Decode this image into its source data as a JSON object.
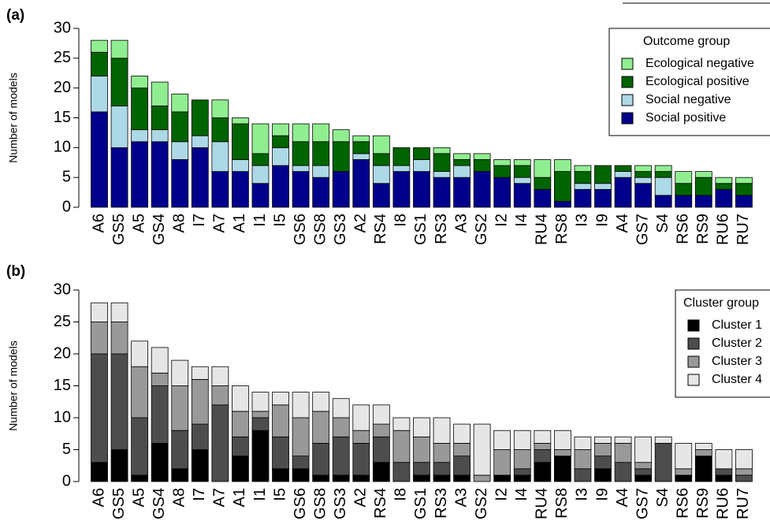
{
  "chart_data": [
    {
      "type": "bar",
      "stacked": true,
      "panel_label": "(a)",
      "ylabel": "Number of models",
      "categories": [
        "A6",
        "GS5",
        "A5",
        "GS4",
        "A8",
        "I7",
        "A7",
        "A1",
        "I1",
        "I5",
        "GS6",
        "GS8",
        "GS3",
        "A2",
        "RS4",
        "I8",
        "GS1",
        "RS3",
        "A3",
        "GS2",
        "I2",
        "I4",
        "RU4",
        "RS8",
        "I3",
        "I9",
        "A4",
        "GS7",
        "S4",
        "RS6",
        "RS9",
        "RU6",
        "RU7"
      ],
      "legend_title": "Outcome group",
      "legend": "right",
      "legend_reversed": true,
      "series": [
        {
          "name": "Social positive",
          "color": "#00008b",
          "values": [
            16,
            10,
            11,
            11,
            8,
            10,
            6,
            6,
            4,
            7,
            6,
            5,
            6,
            8,
            4,
            6,
            6,
            5,
            5,
            6,
            5,
            4,
            3,
            1,
            3,
            3,
            5,
            4,
            2,
            2,
            2,
            3,
            2
          ]
        },
        {
          "name": "Social negative",
          "color": "#add8e6",
          "values": [
            6,
            7,
            2,
            2,
            3,
            2,
            5,
            2,
            3,
            3,
            1,
            2,
            0,
            1,
            3,
            1,
            2,
            1,
            2,
            0,
            0,
            1,
            0,
            0,
            1,
            1,
            1,
            1,
            3,
            0,
            0,
            0,
            0
          ]
        },
        {
          "name": "Ecological positive",
          "color": "#006400",
          "values": [
            4,
            8,
            7,
            4,
            5,
            6,
            4,
            6,
            2,
            2,
            4,
            4,
            5,
            2,
            2,
            3,
            2,
            3,
            1,
            2,
            2,
            2,
            2,
            5,
            2,
            3,
            1,
            1,
            1,
            2,
            3,
            1,
            2
          ]
        },
        {
          "name": "Ecological negative",
          "color": "#90ee90",
          "values": [
            2,
            3,
            2,
            4,
            3,
            0,
            3,
            1,
            5,
            2,
            3,
            3,
            2,
            1,
            3,
            0,
            0,
            1,
            1,
            1,
            1,
            1,
            3,
            2,
            1,
            0,
            0,
            1,
            1,
            2,
            1,
            1,
            1
          ]
        }
      ],
      "ylim": [
        0,
        30
      ],
      "yticks": [
        0,
        5,
        10,
        15,
        20,
        25,
        30
      ]
    },
    {
      "type": "bar",
      "stacked": true,
      "panel_label": "(b)",
      "ylabel": "Number of models",
      "categories": [
        "A6",
        "GS5",
        "A5",
        "GS4",
        "A8",
        "I7",
        "A7",
        "A1",
        "I1",
        "I5",
        "GS6",
        "GS8",
        "GS3",
        "A2",
        "RS4",
        "I8",
        "GS1",
        "RS3",
        "A3",
        "GS2",
        "I2",
        "I4",
        "RU4",
        "RS8",
        "I3",
        "I9",
        "A4",
        "GS7",
        "S4",
        "RS6",
        "RS9",
        "RU6",
        "RU7"
      ],
      "legend_title": "Cluster group",
      "legend": "right",
      "legend_reversed": false,
      "series": [
        {
          "name": "Cluster 1",
          "color": "#000000",
          "values": [
            3,
            5,
            1,
            6,
            2,
            5,
            0,
            4,
            8,
            2,
            2,
            1,
            1,
            1,
            3,
            0,
            1,
            1,
            1,
            0,
            1,
            1,
            3,
            4,
            0,
            2,
            0,
            1,
            0,
            1,
            4,
            1,
            0
          ]
        },
        {
          "name": "Cluster 2",
          "color": "#4d4d4d",
          "values": [
            17,
            15,
            9,
            9,
            6,
            4,
            12,
            3,
            2,
            5,
            2,
            5,
            6,
            5,
            4,
            3,
            2,
            2,
            3,
            0,
            0,
            1,
            2,
            0,
            2,
            2,
            3,
            1,
            6,
            0,
            0,
            1,
            1
          ]
        },
        {
          "name": "Cluster 3",
          "color": "#999999",
          "values": [
            5,
            5,
            8,
            2,
            7,
            7,
            3,
            4,
            1,
            5,
            6,
            5,
            3,
            2,
            2,
            5,
            4,
            3,
            2,
            1,
            4,
            3,
            1,
            1,
            3,
            2,
            3,
            1,
            0,
            1,
            1,
            0,
            1
          ]
        },
        {
          "name": "Cluster 4",
          "color": "#e6e6e6",
          "values": [
            3,
            3,
            4,
            4,
            4,
            2,
            3,
            4,
            3,
            2,
            4,
            3,
            3,
            4,
            3,
            2,
            3,
            4,
            3,
            8,
            3,
            3,
            2,
            3,
            2,
            1,
            1,
            4,
            1,
            4,
            1,
            3,
            3
          ]
        }
      ],
      "ylim": [
        0,
        30
      ],
      "yticks": [
        0,
        5,
        10,
        15,
        20,
        25,
        30
      ]
    }
  ]
}
